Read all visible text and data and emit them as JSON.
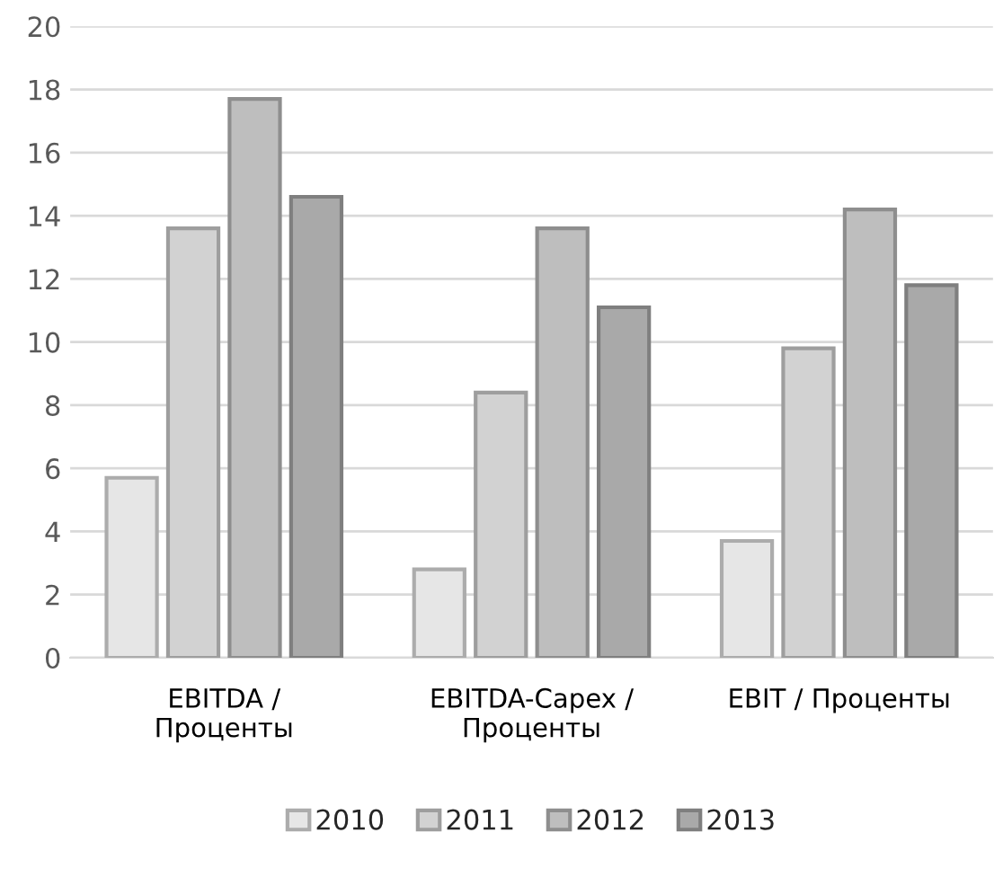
{
  "chart_data": {
    "type": "bar",
    "categories": [
      "EBITDA /\nПроценты",
      "EBITDA-Capex /\nПроценты",
      "EBIT / Проценты"
    ],
    "series": [
      {
        "name": "2010",
        "color": "#e6e6e6",
        "values": [
          5.7,
          2.8,
          3.7
        ]
      },
      {
        "name": "2011",
        "color": "#d2d2d2",
        "values": [
          13.6,
          8.4,
          9.8
        ]
      },
      {
        "name": "2012",
        "color": "#bebebe",
        "values": [
          17.7,
          13.6,
          14.2
        ]
      },
      {
        "name": "2013",
        "color": "#a9a9a9",
        "values": [
          14.6,
          11.1,
          11.8
        ]
      }
    ],
    "ylim": [
      0,
      20
    ],
    "yticks": [
      0,
      2,
      4,
      6,
      8,
      10,
      12,
      14,
      16,
      18,
      20
    ],
    "grid": "y",
    "legend": "bottom"
  }
}
